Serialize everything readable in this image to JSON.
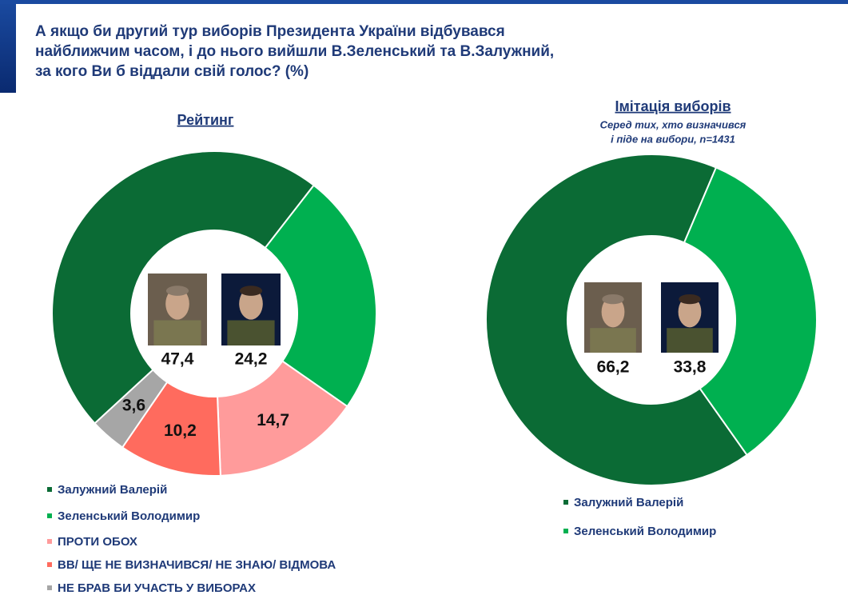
{
  "title": [
    "А якщо би другий тур виборів Президента України відбувався",
    "найближчим часом, і до нього вийшли В.Зеленський та В.Залужний,",
    "за кого Ви б віддали свій голос? (%)"
  ],
  "chart_data": [
    {
      "type": "donut",
      "title": "Рейтинг",
      "categories": [
        "Залужний Валерій",
        "Зеленський Володимир",
        "ПРОТИ ОБОХ",
        "ВВ/ ЩЕ НЕ ВИЗНАЧИВСЯ/ НЕ ЗНАЮ/ ВІДМОВА",
        "НЕ БРАВ БИ УЧАСТЬ У ВИБОРАХ"
      ],
      "values": [
        47.4,
        24.2,
        14.7,
        10.2,
        3.6
      ],
      "value_labels": [
        "47,4",
        "24,2",
        "14,7",
        "10,2",
        "3,6"
      ],
      "colors": [
        "#0b6b35",
        "#00b050",
        "#ff9b9b",
        "#ff6b5e",
        "#a6a6a6"
      ]
    },
    {
      "type": "donut",
      "title": "Імітація виборів",
      "subtitle": [
        "Серед тих, хто визначився",
        "і піде на вибори, n=1431"
      ],
      "categories": [
        "Залужний Валерій",
        "Зеленський Володимир"
      ],
      "values": [
        66.2,
        33.8
      ],
      "value_labels": [
        "66,2",
        "33,8"
      ],
      "colors": [
        "#0b6b35",
        "#00b050"
      ]
    }
  ]
}
